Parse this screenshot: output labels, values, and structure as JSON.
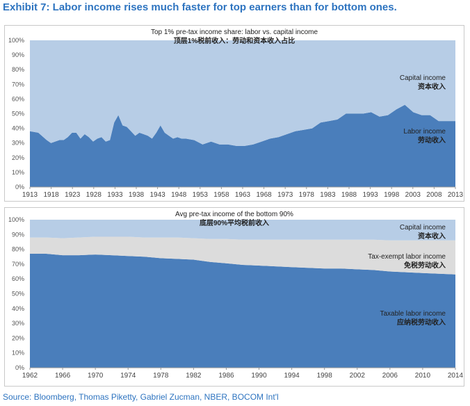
{
  "exhibit_title": "Exhibit 7: Labor income rises much faster for top earners than for bottom ones.",
  "source": "Source: Bloomberg, Thomas Piketty, Gabriel Zucman, NBER, BOCOM Int'l",
  "colors": {
    "labor": "#4a7ebb",
    "capital": "#b7cde6",
    "tax_exempt": "#dcdcdc",
    "title": "#2e74c0"
  },
  "chart_data": [
    {
      "type": "area",
      "title": "Top 1% pre-tax income share: labor vs. capital income",
      "subtitle": "顶层1%税前收入：劳动和资本收入占比",
      "ylim": [
        0,
        100
      ],
      "yticks": [
        "0%",
        "10%",
        "20%",
        "30%",
        "40%",
        "50%",
        "60%",
        "70%",
        "80%",
        "90%",
        "100%"
      ],
      "xlim": [
        1913,
        2014
      ],
      "xticks": [
        "1913",
        "1918",
        "1923",
        "1928",
        "1933",
        "1938",
        "1943",
        "1948",
        "1953",
        "1958",
        "1963",
        "1968",
        "1973",
        "1978",
        "1983",
        "1988",
        "1993",
        "1998",
        "2003",
        "2008",
        "2013"
      ],
      "stacked": true,
      "x": [
        1913,
        1915,
        1917,
        1918,
        1920,
        1921,
        1922,
        1923,
        1924,
        1925,
        1926,
        1927,
        1928,
        1929,
        1930,
        1931,
        1932,
        1933,
        1934,
        1935,
        1936,
        1937,
        1938,
        1939,
        1940,
        1941,
        1942,
        1943,
        1944,
        1945,
        1946,
        1947,
        1948,
        1949,
        1950,
        1952,
        1954,
        1956,
        1958,
        1960,
        1962,
        1964,
        1966,
        1968,
        1970,
        1972,
        1974,
        1976,
        1978,
        1980,
        1982,
        1984,
        1986,
        1988,
        1990,
        1992,
        1994,
        1996,
        1998,
        2000,
        2002,
        2004,
        2006,
        2008,
        2010,
        2012,
        2014
      ],
      "series": [
        {
          "name": "Labor income",
          "label_cn": "劳动收入",
          "values": [
            38,
            37,
            32,
            30,
            32,
            32,
            34,
            37,
            37,
            33,
            36,
            34,
            31,
            33,
            34,
            31,
            32,
            44,
            49,
            42,
            41,
            38,
            35,
            37,
            36,
            35,
            33,
            37,
            42,
            37,
            35,
            33,
            34,
            33,
            33,
            32,
            29,
            31,
            29,
            29,
            28,
            28,
            29,
            31,
            33,
            34,
            36,
            38,
            39,
            40,
            44,
            45,
            46,
            50,
            50,
            50,
            51,
            48,
            49,
            53,
            56,
            51,
            49,
            49,
            45,
            45,
            45
          ]
        },
        {
          "name": "Capital income",
          "label_cn": "资本收入",
          "values": [
            62,
            63,
            68,
            70,
            68,
            68,
            66,
            63,
            63,
            67,
            64,
            66,
            69,
            67,
            66,
            69,
            68,
            56,
            51,
            58,
            59,
            62,
            65,
            63,
            64,
            65,
            67,
            63,
            58,
            63,
            65,
            67,
            66,
            67,
            67,
            68,
            71,
            69,
            71,
            71,
            72,
            72,
            71,
            69,
            67,
            66,
            64,
            62,
            61,
            60,
            56,
            55,
            54,
            50,
            50,
            50,
            49,
            52,
            51,
            47,
            44,
            49,
            51,
            51,
            55,
            55,
            55
          ]
        }
      ]
    },
    {
      "type": "area",
      "title": "Avg pre-tax income of the bottom 90%",
      "subtitle": "底层90%平均税前收入",
      "ylim": [
        0,
        100
      ],
      "yticks": [
        "0%",
        "10%",
        "20%",
        "30%",
        "40%",
        "50%",
        "60%",
        "70%",
        "80%",
        "90%",
        "100%"
      ],
      "xlim": [
        1962,
        2014
      ],
      "xticks": [
        "1962",
        "1966",
        "1970",
        "1974",
        "1978",
        "1982",
        "1986",
        "1990",
        "1994",
        "1998",
        "2002",
        "2006",
        "2010",
        "2014"
      ],
      "stacked": true,
      "x": [
        1962,
        1964,
        1966,
        1968,
        1970,
        1972,
        1974,
        1976,
        1978,
        1980,
        1982,
        1984,
        1986,
        1988,
        1990,
        1992,
        1994,
        1996,
        1998,
        2000,
        2002,
        2004,
        2006,
        2008,
        2010,
        2012,
        2014
      ],
      "series": [
        {
          "name": "Taxable labor income",
          "label_cn": "应纳税劳动收入",
          "values": [
            77,
            77,
            76,
            76,
            76.5,
            76,
            75.5,
            75,
            74,
            73.5,
            73,
            71.5,
            70.5,
            69.5,
            69,
            68.5,
            68,
            67.5,
            67,
            67,
            66.5,
            66,
            65,
            64.5,
            64,
            63.5,
            63
          ]
        },
        {
          "name": "Tax-exempt labor income",
          "label_cn": "免税劳动收入",
          "values": [
            11,
            11,
            11.5,
            12,
            12,
            12.5,
            13,
            13,
            14,
            14.5,
            14.5,
            15.5,
            16.5,
            17,
            17.5,
            18,
            18.5,
            19,
            19.5,
            19.5,
            20,
            20.5,
            21,
            21.5,
            22,
            22.5,
            23
          ]
        },
        {
          "name": "Capital income",
          "label_cn": "资本收入",
          "values": [
            12,
            12,
            12.5,
            12,
            11.5,
            11.5,
            11.5,
            12,
            12,
            12,
            12.5,
            13,
            13,
            13.5,
            13.5,
            13.5,
            13.5,
            13.5,
            13.5,
            13.5,
            13.5,
            13.5,
            14,
            14,
            14,
            14,
            14
          ]
        }
      ]
    }
  ]
}
